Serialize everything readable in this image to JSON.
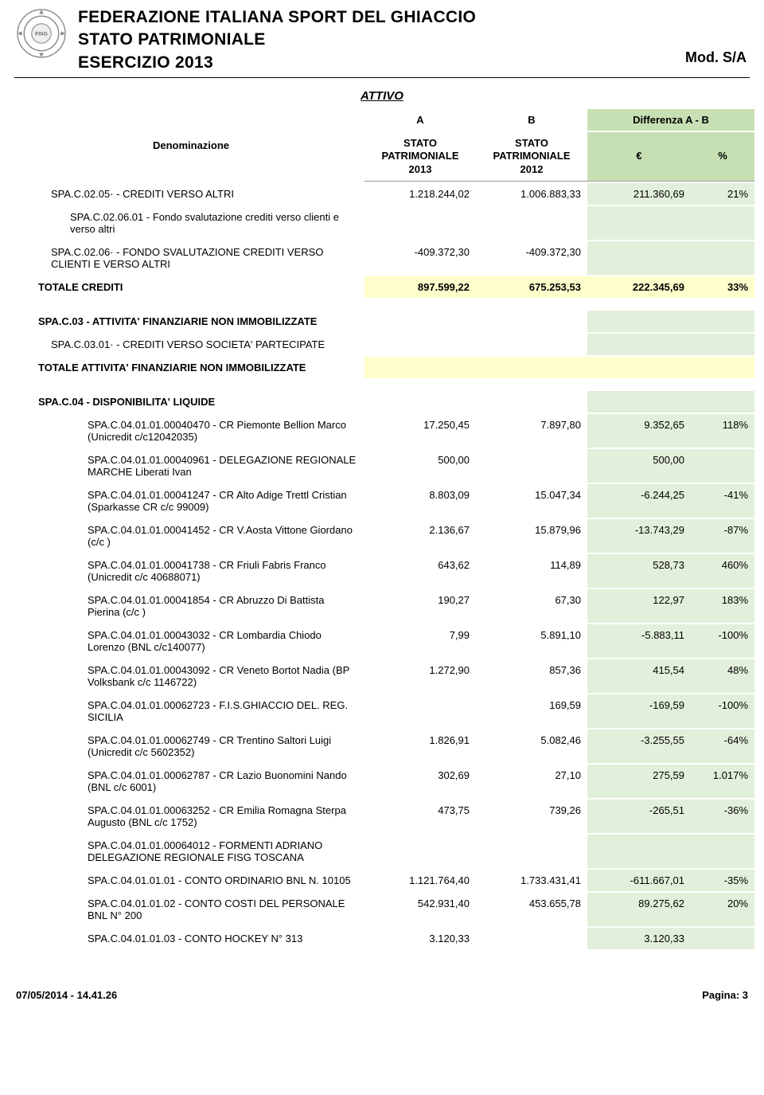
{
  "header": {
    "line1": "FEDERAZIONE ITALIANA SPORT DEL GHIACCIO",
    "line2": "STATO PATRIMONIALE",
    "line3": "ESERCIZIO 2013",
    "mod": "Mod. S/A"
  },
  "attivo_title": "ATTIVO",
  "columns": {
    "denom": "Denominazione",
    "a_label": "A",
    "b_label": "B",
    "a_sub": "STATO PATRIMONIALE 2013",
    "b_sub": "STATO PATRIMONIALE 2012",
    "diff_title": "Differenza A - B",
    "diff_eur": "€",
    "diff_pct": "%"
  },
  "rows": [
    {
      "type": "data",
      "indent": 1,
      "denom": "SPA.C.02.05· - CREDITI VERSO ALTRI",
      "a": "1.218.244,02",
      "b": "1.006.883,33",
      "d": "211.360,69",
      "p": "21%"
    },
    {
      "type": "data",
      "indent": 2,
      "denom": "SPA.C.02.06.01 - Fondo svalutazione crediti verso clienti e verso altri",
      "a": "",
      "b": "",
      "d": "",
      "p": ""
    },
    {
      "type": "data",
      "indent": 1,
      "denom": "SPA.C.02.06· - FONDO SVALUTAZIONE CREDITI VERSO CLIENTI E VERSO ALTRI",
      "a": "-409.372,30",
      "b": "-409.372,30",
      "d": "",
      "p": ""
    },
    {
      "type": "total",
      "denom": "TOTALE CREDITI",
      "a": "897.599,22",
      "b": "675.253,53",
      "d": "222.345,69",
      "p": "33%"
    },
    {
      "type": "spacer"
    },
    {
      "type": "section",
      "denom": "SPA.C.03 - ATTIVITA' FINANZIARIE NON IMMOBILIZZATE",
      "d": "",
      "p": ""
    },
    {
      "type": "data",
      "indent": 1,
      "denom": "SPA.C.03.01· - CREDITI VERSO SOCIETA' PARTECIPATE",
      "a": "",
      "b": "",
      "d": "",
      "p": ""
    },
    {
      "type": "total-empty",
      "denom": "TOTALE ATTIVITA' FINANZIARIE NON IMMOBILIZZATE"
    },
    {
      "type": "spacer"
    },
    {
      "type": "section",
      "denom": "SPA.C.04 - DISPONIBILITA' LIQUIDE",
      "d": "",
      "p": ""
    },
    {
      "type": "data",
      "indent": 3,
      "denom": "SPA.C.04.01.01.00040470 - CR Piemonte Bellion Marco (Unicredit c/c12042035)",
      "a": "17.250,45",
      "b": "7.897,80",
      "d": "9.352,65",
      "p": "118%"
    },
    {
      "type": "data",
      "indent": 3,
      "denom": "SPA.C.04.01.01.00040961 - DELEGAZIONE REGIONALE MARCHE Liberati Ivan",
      "a": "500,00",
      "b": "",
      "d": "500,00",
      "p": ""
    },
    {
      "type": "data",
      "indent": 3,
      "denom": "SPA.C.04.01.01.00041247 - CR Alto Adige Trettl Cristian (Sparkasse CR  c/c 99009)",
      "a": "8.803,09",
      "b": "15.047,34",
      "d": "-6.244,25",
      "p": "-41%"
    },
    {
      "type": "data",
      "indent": 3,
      "denom": "SPA.C.04.01.01.00041452 - CR V.Aosta Vittone Giordano (c/c   )",
      "a": "2.136,67",
      "b": "15.879,96",
      "d": "-13.743,29",
      "p": "-87%"
    },
    {
      "type": "data",
      "indent": 3,
      "denom": "SPA.C.04.01.01.00041738 - CR Friuli Fabris Franco (Unicredit c/c 40688071)",
      "a": "643,62",
      "b": "114,89",
      "d": "528,73",
      "p": "460%"
    },
    {
      "type": "data",
      "indent": 3,
      "denom": "SPA.C.04.01.01.00041854 - CR Abruzzo Di Battista Pierina (c/c  )",
      "a": "190,27",
      "b": "67,30",
      "d": "122,97",
      "p": "183%"
    },
    {
      "type": "data",
      "indent": 3,
      "denom": "SPA.C.04.01.01.00043032 - CR Lombardia Chiodo Lorenzo (BNL c/c140077)",
      "a": "7,99",
      "b": "5.891,10",
      "d": "-5.883,11",
      "p": "-100%"
    },
    {
      "type": "data",
      "indent": 3,
      "denom": "SPA.C.04.01.01.00043092 - CR Veneto Bortot Nadia (BP Volksbank c/c 1146722)",
      "a": "1.272,90",
      "b": "857,36",
      "d": "415,54",
      "p": "48%"
    },
    {
      "type": "data",
      "indent": 3,
      "denom": "SPA.C.04.01.01.00062723 - F.I.S.GHIACCIO DEL. REG.  SICILIA",
      "a": "",
      "b": "169,59",
      "d": "-169,59",
      "p": "-100%"
    },
    {
      "type": "data",
      "indent": 3,
      "denom": "SPA.C.04.01.01.00062749 - CR Trentino Saltori Luigi (Unicredit c/c 5602352)",
      "a": "1.826,91",
      "b": "5.082,46",
      "d": "-3.255,55",
      "p": "-64%"
    },
    {
      "type": "data",
      "indent": 3,
      "denom": "SPA.C.04.01.01.00062787 - CR Lazio Buonomini Nando (BNL c/c 6001)",
      "a": "302,69",
      "b": "27,10",
      "d": "275,59",
      "p": "1.017%"
    },
    {
      "type": "data",
      "indent": 3,
      "denom": "SPA.C.04.01.01.00063252 - CR Emilia Romagna Sterpa Augusto (BNL c/c 1752)",
      "a": "473,75",
      "b": "739,26",
      "d": "-265,51",
      "p": "-36%"
    },
    {
      "type": "data",
      "indent": 3,
      "denom": "SPA.C.04.01.01.00064012 - FORMENTI ADRIANO DELEGAZIONE REGIONALE FISG  TOSCANA",
      "a": "",
      "b": "",
      "d": "",
      "p": ""
    },
    {
      "type": "data",
      "indent": 3,
      "denom": "SPA.C.04.01.01.01 - CONTO ORDINARIO BNL N. 10105",
      "a": "1.121.764,40",
      "b": "1.733.431,41",
      "d": "-611.667,01",
      "p": "-35%"
    },
    {
      "type": "data",
      "indent": 3,
      "denom": "SPA.C.04.01.01.02 - CONTO COSTI DEL PERSONALE BNL N° 200",
      "a": "542.931,40",
      "b": "453.655,78",
      "d": "89.275,62",
      "p": "20%"
    },
    {
      "type": "data",
      "indent": 3,
      "denom": "SPA.C.04.01.01.03 - CONTO HOCKEY N° 313",
      "a": "3.120,33",
      "b": "",
      "d": "3.120,33",
      "p": ""
    }
  ],
  "footer": {
    "timestamp": "07/05/2014 - 14.41.26",
    "page": "Pagina: 3"
  },
  "colors": {
    "header_diff_bg": "#c6e0b4",
    "diff_cell_bg": "#e2efda",
    "total_bg": "#ffffcc"
  }
}
